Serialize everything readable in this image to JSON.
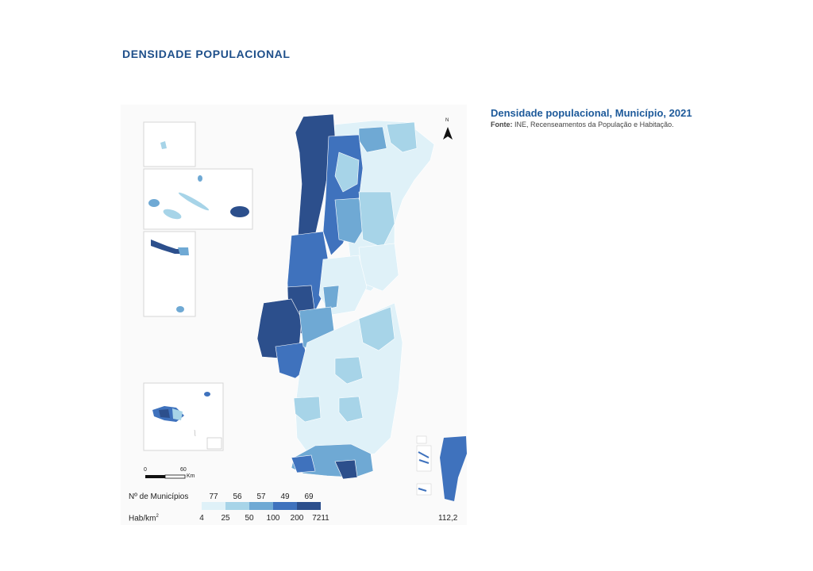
{
  "page": {
    "heading": "DENSIDADE POPULACIONAL"
  },
  "map": {
    "title": "Densidade populacional, Município, 2021",
    "source_label": "Fonte:",
    "source_text": "INE, Recenseamentos da População e Habitação.",
    "north_label": "N",
    "scale": {
      "start": "0",
      "end": "60",
      "unit": "Km"
    },
    "national_value": "112,2",
    "colors": {
      "class1": "#dff1f8",
      "class2": "#a7d4e8",
      "class3": "#6fa9d4",
      "class4": "#3f72bd",
      "class5": "#2c4f8c",
      "border": "#ffffff",
      "portugal_avg": "#3f72bd"
    }
  },
  "legend": {
    "count_label": "Nº de Municípios",
    "density_label": "Hab/km",
    "density_sup": "2",
    "counts": [
      "77",
      "56",
      "57",
      "49",
      "69"
    ],
    "breaks": [
      "4",
      "25",
      "50",
      "100",
      "200",
      "7211"
    ]
  }
}
